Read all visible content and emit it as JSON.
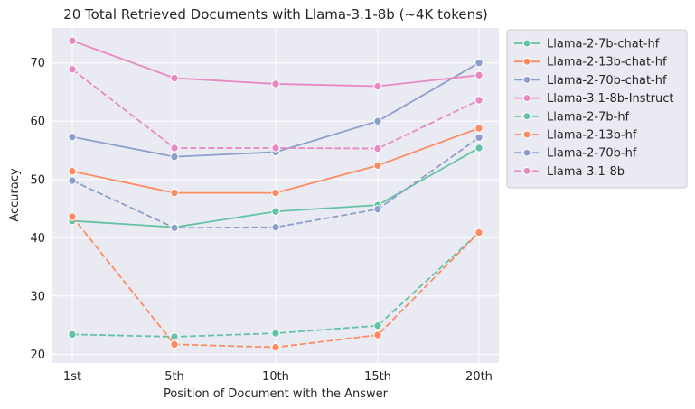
{
  "chart_data": {
    "type": "line",
    "title": "20 Total Retrieved Documents with Llama-3.1-8b (~4K tokens)",
    "xlabel": "Position of Document with the Answer",
    "ylabel": "Accuracy",
    "categories": [
      "1st",
      "5th",
      "10th",
      "15th",
      "20th"
    ],
    "ylim": [
      18.5,
      76.0
    ],
    "yticks": [
      20,
      30,
      40,
      50,
      60,
      70
    ],
    "grid": true,
    "legend_position": "outside-right",
    "series": [
      {
        "name": "Llama-2-7b-chat-hf",
        "color": "#66c2a5",
        "dashed": false,
        "values": [
          42.9,
          41.8,
          44.5,
          45.6,
          55.4
        ]
      },
      {
        "name": "Llama-2-13b-chat-hf",
        "color": "#fc8d62",
        "dashed": false,
        "values": [
          51.4,
          47.7,
          47.7,
          52.4,
          58.8
        ]
      },
      {
        "name": "Llama-2-70b-chat-hf",
        "color": "#8da0cb",
        "dashed": false,
        "values": [
          57.3,
          53.9,
          54.7,
          60.0,
          70.0
        ]
      },
      {
        "name": "Llama-3.1-8b-Instruct",
        "color": "#e78ac3",
        "dashed": false,
        "values": [
          73.8,
          67.4,
          66.4,
          66.0,
          67.9
        ]
      },
      {
        "name": "Llama-2-7b-hf",
        "color": "#66c2a5",
        "dashed": true,
        "values": [
          23.4,
          23.0,
          23.6,
          24.9,
          40.9
        ]
      },
      {
        "name": "Llama-2-13b-hf",
        "color": "#fc8d62",
        "dashed": true,
        "values": [
          43.6,
          21.7,
          21.2,
          23.3,
          40.9
        ]
      },
      {
        "name": "Llama-2-70b-hf",
        "color": "#8da0cb",
        "dashed": true,
        "values": [
          49.8,
          41.7,
          41.8,
          44.9,
          57.2
        ]
      },
      {
        "name": "Llama-3.1-8b",
        "color": "#e78ac3",
        "dashed": true,
        "values": [
          68.9,
          55.4,
          55.4,
          55.3,
          63.6
        ]
      }
    ]
  }
}
